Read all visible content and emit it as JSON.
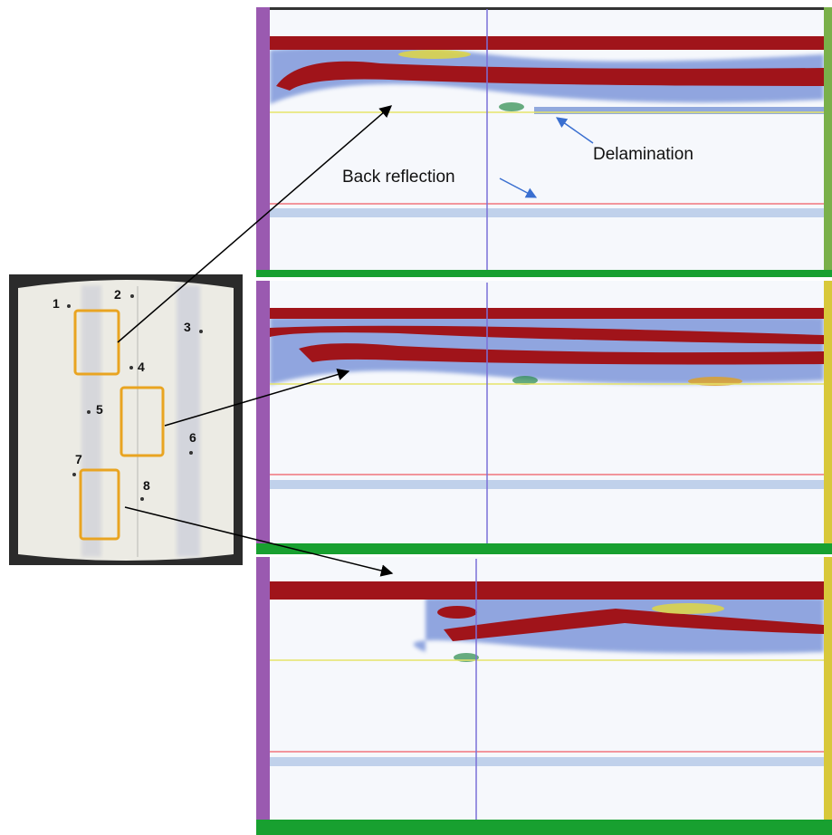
{
  "specimen": {
    "points": [
      "1",
      "2",
      "3",
      "4",
      "5",
      "6",
      "7",
      "8"
    ]
  },
  "annotations": {
    "back_reflection": "Back reflection",
    "delamination": "Delamination"
  }
}
